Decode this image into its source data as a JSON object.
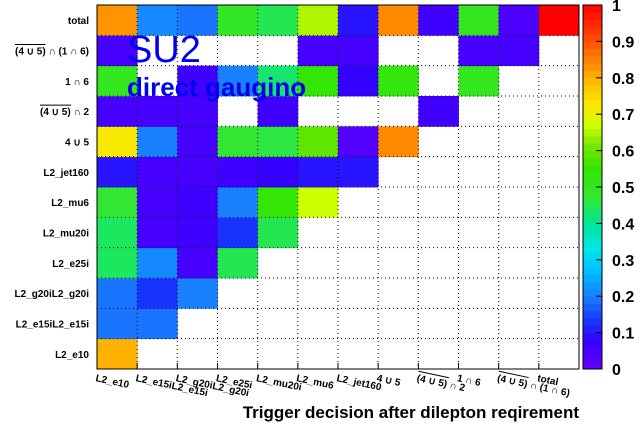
{
  "chart_data": {
    "type": "heatmap",
    "title": "SU2",
    "subtitle": "direct gaugino",
    "xlabel": "Trigger decision after dilepton reqirement",
    "ylabel": "",
    "categories": [
      "L2_e10",
      "L2_e15iL2_e15i",
      "L2_g20iL2_g20i",
      "L2_e25i",
      "L2_mu20i",
      "L2_mu6",
      "L2_jet160",
      "4 ∪ 5",
      "(4 ∪ 5) ∩ 2",
      "1 ∩ 6",
      "(4 ∪ 5) ∩ (1 ∩ 6)",
      "total"
    ],
    "overlined": [
      false,
      false,
      false,
      false,
      false,
      false,
      false,
      false,
      true,
      false,
      true,
      false
    ],
    "zlim": [
      0,
      1
    ],
    "zticks": [
      "0",
      "0.1",
      "0.2",
      "0.3",
      "0.4",
      "0.5",
      "0.6",
      "0.7",
      "0.8",
      "0.9",
      "1"
    ],
    "grid": true,
    "colorbar": "right",
    "values": [
      [
        0.8,
        null,
        null,
        null,
        null,
        null,
        null,
        null,
        null,
        null,
        null,
        null
      ],
      [
        0.19,
        0.19,
        null,
        null,
        null,
        null,
        null,
        null,
        null,
        null,
        null,
        null
      ],
      [
        0.19,
        0.13,
        0.2,
        null,
        null,
        null,
        null,
        null,
        null,
        null,
        null,
        null
      ],
      [
        0.44,
        0.21,
        0.05,
        0.45,
        null,
        null,
        null,
        null,
        null,
        null,
        null,
        null
      ],
      [
        0.44,
        0.05,
        0.06,
        0.13,
        0.45,
        null,
        null,
        null,
        null,
        null,
        null,
        null
      ],
      [
        0.47,
        0.05,
        0.06,
        0.2,
        0.54,
        0.67,
        null,
        null,
        null,
        null,
        null,
        null
      ],
      [
        0.1,
        0.05,
        0.05,
        0.06,
        0.08,
        0.1,
        0.1,
        null,
        null,
        null,
        null,
        null
      ],
      [
        0.72,
        0.2,
        0.05,
        0.47,
        0.46,
        0.59,
        0.03,
        0.84,
        null,
        null,
        null,
        null
      ],
      [
        0.05,
        0.05,
        0.05,
        null,
        0.06,
        null,
        null,
        null,
        0.06,
        null,
        null,
        null
      ],
      [
        0.5,
        null,
        0.06,
        0.2,
        0.43,
        0.54,
        0.08,
        0.53,
        null,
        0.5,
        null,
        null
      ],
      [
        0.05,
        null,
        null,
        null,
        null,
        0.05,
        0.05,
        null,
        null,
        0.05,
        0.05,
        null
      ],
      [
        0.83,
        0.21,
        0.19,
        0.49,
        0.45,
        0.65,
        0.1,
        0.84,
        0.06,
        0.5,
        0.04,
        1.0
      ]
    ]
  }
}
